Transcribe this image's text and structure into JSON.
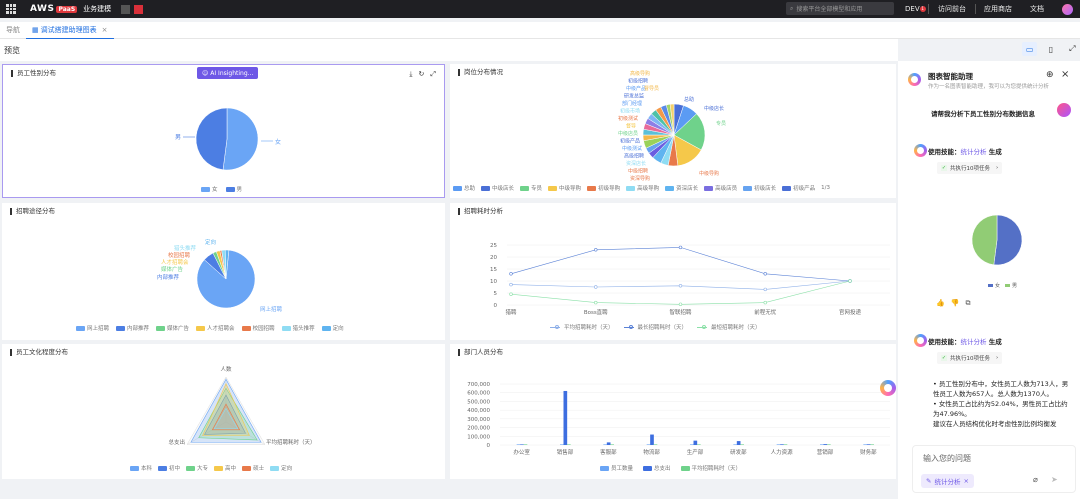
{
  "topbar": {
    "brand": "AWS",
    "paas": "PaaS",
    "app_name": "业务建模",
    "search_placeholder": "搜索平台全部模型和应用",
    "env": "DEV",
    "env_badge": "1",
    "visit_front": "访问前台",
    "app_store": "应用商店",
    "docs": "文档"
  },
  "tabs": {
    "nav": "导航",
    "active": "调试搭建助理图表",
    "close": "×"
  },
  "preview": {
    "title": "预览"
  },
  "panels": {
    "gender": {
      "title": "员工性别分布",
      "ai_button": "AI Insighting...",
      "legend": [
        "女",
        "男"
      ],
      "labels": {
        "male": "男",
        "female": "女"
      },
      "colors": [
        "#6aa5f5",
        "#4c7ee3"
      ]
    },
    "position": {
      "title": "岗位分布情况",
      "legend": [
        "总助",
        "中级店长",
        "专员",
        "中级导购",
        "初级导购",
        "高级导购",
        "资深店长",
        "高级店员",
        "初级店长",
        "初级产品"
      ],
      "legend_page": "1/3",
      "labels_left": [
        "高级导购",
        "初级招聘",
        "中级产品",
        "研发总监",
        "部门经理",
        "初级市场",
        "初级测试",
        "督导",
        "中级店员",
        "初级产品",
        "中级测试",
        "高级招聘",
        "资深店长",
        "中级招聘",
        "资深导购"
      ],
      "labels_right": [
        "督导员",
        "总助",
        "中级店长",
        "专员",
        "中级导购"
      ]
    },
    "recruit_channel": {
      "title": "招聘途径分布",
      "legend": [
        "网上招聘",
        "内部推荐",
        "媒体广告",
        "人才招聘会",
        "校园招聘",
        "猎头推荐",
        "定向"
      ],
      "labels": [
        "定向",
        "猎头推荐",
        "校园招聘",
        "人才招聘会",
        "媒体广告",
        "内部推荐",
        "网上招聘"
      ]
    },
    "recruit_time": {
      "title": "招聘耗时分析",
      "legend": [
        "平均招聘耗时（天）",
        "最长招聘耗时（天）",
        "最短招聘耗时（天）"
      ]
    },
    "education": {
      "title": "员工文化程度分布",
      "axes": [
        "人数",
        "平均招聘耗时（天）",
        "总支出"
      ],
      "legend": [
        "本科",
        "初中",
        "大专",
        "高中",
        "硕士",
        "定向"
      ]
    },
    "dept": {
      "title": "部门人员分布",
      "legend": [
        "员工数量",
        "总支出",
        "平均招聘耗时（天）"
      ]
    }
  },
  "chart_data": [
    {
      "type": "pie",
      "title": "员工性别分布",
      "categories": [
        "女",
        "男"
      ],
      "values": [
        713,
        657
      ]
    },
    {
      "type": "pie",
      "title": "岗位分布情况",
      "categories": [
        "总助",
        "中级店长",
        "专员",
        "中级导购",
        "资深导购",
        "中级招聘",
        "资深店长",
        "高级招聘",
        "中级测试",
        "初级产品",
        "中级店员",
        "督导",
        "初级测试",
        "初级市场",
        "部门经理",
        "研发总监",
        "中级产品",
        "初级招聘",
        "高级导购",
        "督导员"
      ],
      "values": [
        5,
        8,
        20,
        15,
        5,
        4,
        5,
        3,
        3,
        4,
        3,
        3,
        3,
        3,
        3,
        3,
        3,
        3,
        2,
        2
      ]
    },
    {
      "type": "pie",
      "title": "招聘途径分布",
      "categories": [
        "网上招聘",
        "内部推荐",
        "媒体广告",
        "人才招聘会",
        "校园招聘",
        "猎头推荐",
        "定向"
      ],
      "values": [
        85,
        6,
        2,
        2,
        1,
        2,
        2
      ]
    },
    {
      "type": "line",
      "title": "招聘耗时分析",
      "categories": [
        "猎聘",
        "Boss直聘",
        "智联招聘",
        "前程无忧",
        "官网投递"
      ],
      "series": [
        {
          "name": "平均招聘耗时（天）",
          "values": [
            8.5,
            7.5,
            8,
            6.5,
            10
          ]
        },
        {
          "name": "最长招聘耗时（天）",
          "values": [
            13,
            23,
            24,
            13,
            10
          ]
        },
        {
          "name": "最短招聘耗时（天）",
          "values": [
            4.5,
            1,
            0.3,
            1,
            10
          ]
        }
      ],
      "yticks": [
        0,
        5,
        10,
        15,
        20,
        25
      ],
      "ylim": [
        0,
        25
      ]
    },
    {
      "type": "radar",
      "title": "员工文化程度分布",
      "axes": [
        "人数",
        "平均招聘耗时（天）",
        "总支出"
      ],
      "series": [
        "本科",
        "初中",
        "大专",
        "高中",
        "硕士",
        "定向"
      ]
    },
    {
      "type": "bar",
      "title": "部门人员分布",
      "categories": [
        "办公室",
        "销售部",
        "客服部",
        "物流部",
        "生产部",
        "研发部",
        "人力资源",
        "营销部",
        "财务部"
      ],
      "series": [
        {
          "name": "员工数量",
          "values": [
            0,
            0,
            0,
            0,
            0,
            0,
            0,
            0,
            0
          ]
        },
        {
          "name": "总支出",
          "values": [
            3000,
            620000,
            30000,
            120000,
            50000,
            45000,
            8000,
            10000,
            8000
          ]
        },
        {
          "name": "平均招聘耗时（天）",
          "values": [
            0,
            0,
            0,
            0,
            0,
            0,
            0,
            0,
            0
          ]
        }
      ],
      "yticks": [
        0,
        100000,
        200000,
        300000,
        400000,
        500000,
        600000,
        700000
      ],
      "ytick_labels": [
        "0",
        "100,000",
        "200,000",
        "300,000",
        "400,000",
        "500,000",
        "600,000",
        "700,000"
      ],
      "ylim": [
        0,
        700000
      ]
    },
    {
      "type": "pie",
      "title": "",
      "categories": [
        "女",
        "男"
      ],
      "values": [
        52.04,
        47.96
      ]
    }
  ],
  "assistant": {
    "title": "图表智能助理",
    "subtitle": "作为一名图表智能助理，我可以为您提供统计分析",
    "user_question": "请帮我分析下员工性别分布数据信息",
    "skill_prefix": "使用技能：",
    "skill_name": "统计分析",
    "skill_suffix": " 生成",
    "tasks": "共执行10项任务",
    "chevron": "›",
    "pie_legend": [
      "女",
      "男"
    ],
    "analysis_lines": [
      "• 员工性别分布中，女性员工人数为713人，男性员工人数为657人。总人数为1370人。",
      "• 女性员工占比约为52.04%，男性员工占比约为47.96%。",
      "建议在人员结构优化时考虑性别比例均衡发"
    ],
    "input_placeholder": "输入您的问题",
    "chip": "统计分析",
    "chip_close": "×"
  }
}
